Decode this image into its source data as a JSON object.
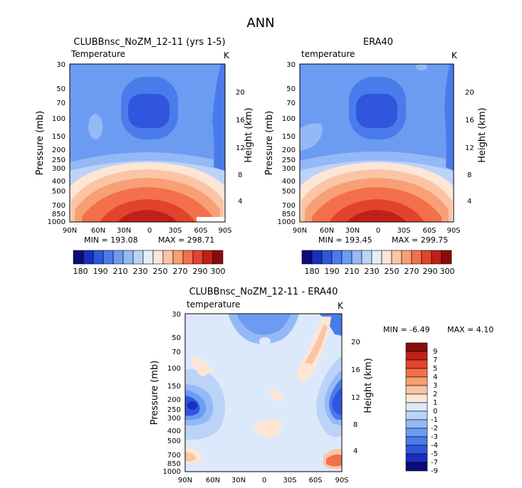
{
  "page_title": "ANN",
  "chart_data": [
    {
      "type": "heatmap",
      "title": "CLUBBnsc_NoZM_12-11 (yrs 1-5)",
      "subtitle": "Temperature",
      "units": "K",
      "xlabel": "",
      "ylabel": "Pressure (mb)",
      "ylabel_right": "Height (km)",
      "x_ticks": [
        "90N",
        "60N",
        "30N",
        "0",
        "30S",
        "60S",
        "90S"
      ],
      "y_ticks": [
        "30",
        "50",
        "70",
        "100",
        "150",
        "200",
        "250",
        "300",
        "400",
        "500",
        "700",
        "850",
        "1000"
      ],
      "height_ticks": [
        "20",
        "16",
        "12",
        "8",
        "4"
      ],
      "min_label": "MIN = 193.08",
      "max_label": "MAX = 298.71",
      "colorbar_levels": [
        "180",
        "190",
        "210",
        "230",
        "250",
        "270",
        "290",
        "300"
      ],
      "min": 193.08,
      "max": 298.71
    },
    {
      "type": "heatmap",
      "title": "ERA40",
      "subtitle": "temperature",
      "units": "K",
      "xlabel": "",
      "ylabel": "Pressure (mb)",
      "ylabel_right": "Height (km)",
      "x_ticks": [
        "90N",
        "60N",
        "30N",
        "0",
        "30S",
        "60S",
        "90S"
      ],
      "y_ticks": [
        "30",
        "50",
        "70",
        "100",
        "150",
        "200",
        "250",
        "300",
        "400",
        "500",
        "700",
        "850",
        "1000"
      ],
      "height_ticks": [
        "20",
        "16",
        "12",
        "8",
        "4"
      ],
      "min_label": "MIN = 193.45",
      "max_label": "MAX = 299.75",
      "colorbar_levels": [
        "180",
        "190",
        "210",
        "230",
        "250",
        "270",
        "290",
        "300"
      ],
      "min": 193.45,
      "max": 299.75
    },
    {
      "type": "heatmap",
      "title": "CLUBBnsc_NoZM_12-11 - ERA40",
      "subtitle": "temperature",
      "units": "K",
      "xlabel": "",
      "ylabel": "Pressure (mb)",
      "ylabel_right": "Height (km)",
      "x_ticks": [
        "90N",
        "60N",
        "30N",
        "0",
        "30S",
        "60S",
        "90S"
      ],
      "y_ticks": [
        "30",
        "50",
        "70",
        "100",
        "150",
        "200",
        "250",
        "300",
        "400",
        "500",
        "700",
        "850",
        "1000"
      ],
      "height_ticks": [
        "20",
        "16",
        "12",
        "8",
        "4"
      ],
      "min_label": "MIN = -6.49",
      "max_label": "MAX = 4.10",
      "colorbar_levels": [
        "9",
        "7",
        "5",
        "4",
        "3",
        "2",
        "1",
        "0",
        "-1",
        "-2",
        "-3",
        "-4",
        "-5",
        "-7",
        "-9"
      ],
      "min": -6.49,
      "max": 4.1
    }
  ],
  "colors": {
    "abs_scale": [
      "#0b0b7a",
      "#1a2fbf",
      "#2f56dd",
      "#4a7bea",
      "#6c9bf2",
      "#95b8f6",
      "#bcd3f8",
      "#e4eefb",
      "#fde6d6",
      "#fbc5a5",
      "#f89f76",
      "#f2704a",
      "#e2432c",
      "#c0201a",
      "#8a0b0b"
    ],
    "diff_scale": [
      "#8a0b0b",
      "#c0201a",
      "#e2432c",
      "#f2704a",
      "#f89f76",
      "#fbc5a5",
      "#fde6d6",
      "#dce9fb",
      "#bcd3f8",
      "#95b8f6",
      "#6c9bf2",
      "#4a7bea",
      "#2f56dd",
      "#1a2fbf",
      "#0b0b7a"
    ]
  }
}
